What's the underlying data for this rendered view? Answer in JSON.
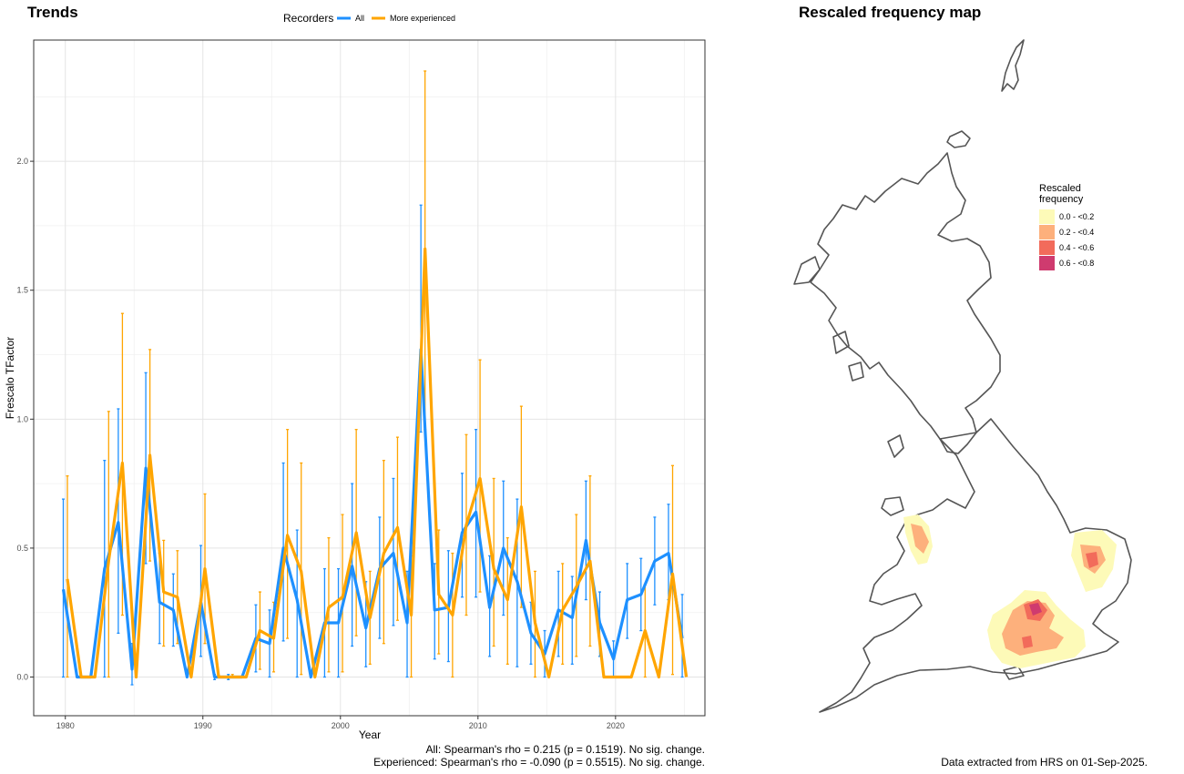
{
  "left_title": "Trends",
  "right_title": "Rescaled frequency map",
  "legend": {
    "title": "Recorders",
    "items": [
      {
        "label": "All",
        "color": "#1e90ff"
      },
      {
        "label": "More experienced",
        "color": "#ffa500"
      }
    ]
  },
  "notes": {
    "line1": "All: Spearman's rho = 0.215 (p = 0.1519). No sig. change.",
    "line2": "Experienced: Spearman's rho = -0.090 (p = 0.5515). No sig. change.",
    "extracted": "Data extracted from HRS on 01-Sep-2025."
  },
  "map_legend": {
    "title_line1": "Rescaled",
    "title_line2": "frequency",
    "items": [
      {
        "label": "0.0 - <0.2",
        "color": "#fdfab8"
      },
      {
        "label": "0.2 - <0.4",
        "color": "#fdb07c"
      },
      {
        "label": "0.4 - <0.6",
        "color": "#f26b5b"
      },
      {
        "label": "0.6 - <0.8",
        "color": "#cf3b6f"
      }
    ]
  },
  "chart_data": {
    "type": "line",
    "title": "",
    "xlabel": "Year",
    "ylabel": "Frescalo TFactor",
    "xlim": [
      1977.7,
      2026.5
    ],
    "ylim": [
      -0.15,
      2.47
    ],
    "xticks": [
      1980,
      1990,
      2000,
      2010,
      2020
    ],
    "yticks": [
      "0.0",
      "0.5",
      "1.0",
      "1.5",
      "2.0"
    ],
    "grid": true,
    "legend_position": "top",
    "x": [
      1980,
      1981,
      1982,
      1983,
      1984,
      1985,
      1986,
      1987,
      1988,
      1989,
      1990,
      1991,
      1992,
      1993,
      1994,
      1995,
      1996,
      1997,
      1998,
      1999,
      2000,
      2001,
      2002,
      2003,
      2004,
      2005,
      2006,
      2007,
      2008,
      2009,
      2010,
      2011,
      2012,
      2013,
      2014,
      2015,
      2016,
      2017,
      2018,
      2019,
      2020,
      2021,
      2022,
      2023,
      2024,
      2025
    ],
    "series": [
      {
        "name": "All",
        "color": "#1e90ff",
        "values": [
          0.34,
          0,
          0,
          0.42,
          0.6,
          0.03,
          0.81,
          0.29,
          0.26,
          0,
          0.29,
          0,
          0,
          0,
          0.15,
          0.13,
          0.5,
          0.3,
          0,
          0.21,
          0.21,
          0.43,
          0.19,
          0.42,
          0.48,
          0.21,
          1.27,
          0.26,
          0.27,
          0.56,
          0.64,
          0.27,
          0.5,
          0.37,
          0.17,
          0.09,
          0.26,
          0.23,
          0.53,
          0.21,
          0.07,
          0.3,
          0.32,
          0.45,
          0.48,
          0.15
        ],
        "lower": [
          0,
          0,
          0,
          0,
          0.17,
          -0.03,
          0.44,
          0.13,
          0.12,
          0,
          0.08,
          -0.01,
          -0.01,
          0,
          0.02,
          0,
          0.14,
          0,
          0,
          0,
          0,
          0.12,
          0.04,
          0.15,
          0.2,
          0,
          0.95,
          0.07,
          0.06,
          0.31,
          0.31,
          0.08,
          0.24,
          0.04,
          0.05,
          0,
          0.08,
          0.05,
          0.3,
          0.08,
          0,
          0.15,
          0.18,
          0.28,
          0.3,
          0
        ],
        "upper": [
          0.69,
          0,
          0,
          0.84,
          1.04,
          0.13,
          1.18,
          0.48,
          0.4,
          0,
          0.51,
          0.01,
          0.01,
          0,
          0.28,
          0.26,
          0.83,
          0.57,
          0,
          0.42,
          0.42,
          0.75,
          0.37,
          0.62,
          0.77,
          0.41,
          1.83,
          0.44,
          0.49,
          0.79,
          0.96,
          0.47,
          0.76,
          0.69,
          0.29,
          0.18,
          0.41,
          0.39,
          0.76,
          0.33,
          0.14,
          0.44,
          0.46,
          0.62,
          0.67,
          0.32
        ]
      },
      {
        "name": "More experienced",
        "color": "#ffa500",
        "values": [
          0.38,
          0,
          0,
          0.45,
          0.83,
          0,
          0.86,
          0.33,
          0.31,
          0,
          0.42,
          0,
          0,
          0,
          0.18,
          0.15,
          0.55,
          0.41,
          0,
          0.27,
          0.31,
          0.56,
          0.23,
          0.48,
          0.58,
          0.24,
          1.66,
          0.32,
          0.24,
          0.59,
          0.77,
          0.42,
          0.3,
          0.66,
          0.21,
          0,
          0.26,
          0.35,
          0.45,
          0,
          0,
          0,
          0.18,
          0,
          0.4,
          0
        ],
        "lower": [
          0,
          0,
          0,
          0,
          0.24,
          0,
          0.45,
          0.12,
          0.13,
          0,
          0.13,
          0,
          0,
          0,
          0.03,
          0.02,
          0.15,
          0.01,
          0,
          0.02,
          0.02,
          0.16,
          0.05,
          0.13,
          0.22,
          0,
          0.96,
          0.09,
          0,
          0.24,
          0.33,
          0.12,
          0.05,
          0.27,
          0,
          0,
          0.05,
          0.08,
          0.12,
          0,
          0,
          0,
          0,
          0,
          0.01,
          0
        ],
        "upper": [
          0.78,
          0,
          0,
          1.03,
          1.41,
          0,
          1.27,
          0.53,
          0.49,
          0,
          0.71,
          0,
          0.01,
          0,
          0.33,
          0.29,
          0.96,
          0.83,
          0,
          0.54,
          0.63,
          0.96,
          0.41,
          0.84,
          0.93,
          0.47,
          2.35,
          0.57,
          0.48,
          0.94,
          1.23,
          0.77,
          0.54,
          1.05,
          0.41,
          0,
          0.44,
          0.63,
          0.78,
          0,
          0,
          0,
          0.36,
          0,
          0.82,
          0
        ]
      }
    ]
  }
}
